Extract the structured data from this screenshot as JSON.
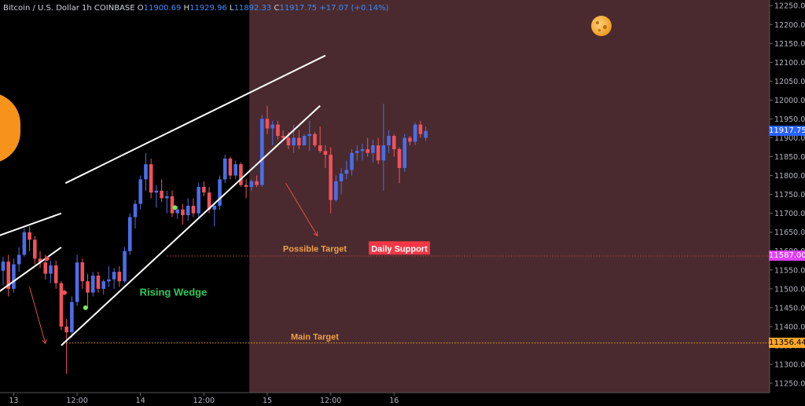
{
  "header": {
    "symbol": "Bitcoin / U.S. Dollar",
    "interval": "1h",
    "exchange": "COINBASE",
    "open_label": "O",
    "open": "11900.69",
    "high_label": "H",
    "high": "11929.96",
    "low_label": "L",
    "low": "11892.33",
    "close_label": "C",
    "close": "11917.75",
    "change": "+17.07 (+0.14%)"
  },
  "price_tags": {
    "last": "11917.75",
    "support": "11587.00",
    "main": "11356.44"
  },
  "colors": {
    "up": "#4a6ee8",
    "down": "#f0525a",
    "shade": "#4a2a2e",
    "last_tag": "#2962ff",
    "support_tag": "#e040fb",
    "main_tag": "#ffa726",
    "label": "#f0a04b",
    "wedge_label": "#2ec95a"
  },
  "chart_data": {
    "type": "candlestick",
    "y_axis": {
      "min": 11225,
      "max": 12265,
      "ticks": [
        "11250.00",
        "11300.00",
        "11350.00",
        "11400.00",
        "11450.00",
        "11500.00",
        "11550.00",
        "11600.00",
        "11650.00",
        "11700.00",
        "11750.00",
        "11800.00",
        "11850.00",
        "11900.00",
        "11950.00",
        "12000.00",
        "12050.00",
        "12100.00",
        "12150.00",
        "12200.00",
        "12250.00"
      ]
    },
    "x_axis": {
      "ticks": [
        {
          "label": "13",
          "index": 2
        },
        {
          "label": "12:00",
          "index": 14
        },
        {
          "label": "14",
          "index": 26
        },
        {
          "label": "12:00",
          "index": 38
        },
        {
          "label": "15",
          "index": 50
        },
        {
          "label": "12:00",
          "index": 62
        },
        {
          "label": "16",
          "index": 74
        }
      ]
    },
    "candles": [
      {
        "o": 11548,
        "h": 11585,
        "l": 11510,
        "c": 11572
      },
      {
        "o": 11572,
        "h": 11590,
        "l": 11480,
        "c": 11500
      },
      {
        "o": 11500,
        "h": 11580,
        "l": 11490,
        "c": 11565
      },
      {
        "o": 11565,
        "h": 11610,
        "l": 11545,
        "c": 11590
      },
      {
        "o": 11590,
        "h": 11660,
        "l": 11585,
        "c": 11650
      },
      {
        "o": 11650,
        "h": 11665,
        "l": 11600,
        "c": 11630
      },
      {
        "o": 11630,
        "h": 11640,
        "l": 11565,
        "c": 11580
      },
      {
        "o": 11580,
        "h": 11600,
        "l": 11555,
        "c": 11570
      },
      {
        "o": 11570,
        "h": 11590,
        "l": 11525,
        "c": 11540
      },
      {
        "o": 11540,
        "h": 11575,
        "l": 11515,
        "c": 11562
      },
      {
        "o": 11562,
        "h": 11575,
        "l": 11500,
        "c": 11515
      },
      {
        "o": 11515,
        "h": 11520,
        "l": 11390,
        "c": 11400
      },
      {
        "o": 11400,
        "h": 11420,
        "l": 11275,
        "c": 11385
      },
      {
        "o": 11385,
        "h": 11480,
        "l": 11370,
        "c": 11465
      },
      {
        "o": 11465,
        "h": 11590,
        "l": 11455,
        "c": 11570
      },
      {
        "o": 11570,
        "h": 11580,
        "l": 11500,
        "c": 11520
      },
      {
        "o": 11520,
        "h": 11540,
        "l": 11450,
        "c": 11490
      },
      {
        "o": 11490,
        "h": 11545,
        "l": 11480,
        "c": 11535
      },
      {
        "o": 11535,
        "h": 11545,
        "l": 11490,
        "c": 11500
      },
      {
        "o": 11500,
        "h": 11525,
        "l": 11485,
        "c": 11520
      },
      {
        "o": 11520,
        "h": 11560,
        "l": 11505,
        "c": 11525
      },
      {
        "o": 11525,
        "h": 11555,
        "l": 11500,
        "c": 11545
      },
      {
        "o": 11545,
        "h": 11560,
        "l": 11505,
        "c": 11520
      },
      {
        "o": 11520,
        "h": 11610,
        "l": 11515,
        "c": 11600
      },
      {
        "o": 11600,
        "h": 11700,
        "l": 11590,
        "c": 11690
      },
      {
        "o": 11690,
        "h": 11735,
        "l": 11660,
        "c": 11725
      },
      {
        "o": 11725,
        "h": 11800,
        "l": 11710,
        "c": 11790
      },
      {
        "o": 11790,
        "h": 11860,
        "l": 11760,
        "c": 11830
      },
      {
        "o": 11830,
        "h": 11845,
        "l": 11740,
        "c": 11755
      },
      {
        "o": 11755,
        "h": 11775,
        "l": 11715,
        "c": 11760
      },
      {
        "o": 11760,
        "h": 11790,
        "l": 11730,
        "c": 11740
      },
      {
        "o": 11740,
        "h": 11760,
        "l": 11700,
        "c": 11745
      },
      {
        "o": 11745,
        "h": 11760,
        "l": 11690,
        "c": 11700
      },
      {
        "o": 11700,
        "h": 11720,
        "l": 11685,
        "c": 11710
      },
      {
        "o": 11710,
        "h": 11725,
        "l": 11670,
        "c": 11695
      },
      {
        "o": 11695,
        "h": 11740,
        "l": 11680,
        "c": 11720
      },
      {
        "o": 11720,
        "h": 11740,
        "l": 11690,
        "c": 11700
      },
      {
        "o": 11700,
        "h": 11780,
        "l": 11690,
        "c": 11770
      },
      {
        "o": 11770,
        "h": 11785,
        "l": 11745,
        "c": 11755
      },
      {
        "o": 11755,
        "h": 11770,
        "l": 11700,
        "c": 11710
      },
      {
        "o": 11710,
        "h": 11725,
        "l": 11665,
        "c": 11720
      },
      {
        "o": 11720,
        "h": 11800,
        "l": 11710,
        "c": 11790
      },
      {
        "o": 11790,
        "h": 11855,
        "l": 11780,
        "c": 11845
      },
      {
        "o": 11845,
        "h": 11850,
        "l": 11790,
        "c": 11800
      },
      {
        "o": 11800,
        "h": 11840,
        "l": 11790,
        "c": 11830
      },
      {
        "o": 11830,
        "h": 11835,
        "l": 11770,
        "c": 11775
      },
      {
        "o": 11775,
        "h": 11790,
        "l": 11740,
        "c": 11770
      },
      {
        "o": 11770,
        "h": 11790,
        "l": 11760,
        "c": 11785
      },
      {
        "o": 11785,
        "h": 11800,
        "l": 11770,
        "c": 11775
      },
      {
        "o": 11775,
        "h": 11960,
        "l": 11770,
        "c": 11950
      },
      {
        "o": 11950,
        "h": 11985,
        "l": 11910,
        "c": 11925
      },
      {
        "o": 11925,
        "h": 11945,
        "l": 11880,
        "c": 11935
      },
      {
        "o": 11935,
        "h": 11945,
        "l": 11895,
        "c": 11905
      },
      {
        "o": 11905,
        "h": 11920,
        "l": 11895,
        "c": 11900
      },
      {
        "o": 11900,
        "h": 11915,
        "l": 11870,
        "c": 11880
      },
      {
        "o": 11880,
        "h": 11935,
        "l": 11860,
        "c": 11900
      },
      {
        "o": 11900,
        "h": 11920,
        "l": 11870,
        "c": 11880
      },
      {
        "o": 11880,
        "h": 11910,
        "l": 11880,
        "c": 11905
      },
      {
        "o": 11905,
        "h": 11945,
        "l": 11865,
        "c": 11910
      },
      {
        "o": 11910,
        "h": 11915,
        "l": 11875,
        "c": 11880
      },
      {
        "o": 11880,
        "h": 11930,
        "l": 11860,
        "c": 11865
      },
      {
        "o": 11865,
        "h": 11880,
        "l": 11820,
        "c": 11855
      },
      {
        "o": 11855,
        "h": 11875,
        "l": 11700,
        "c": 11735
      },
      {
        "o": 11735,
        "h": 11800,
        "l": 11730,
        "c": 11785
      },
      {
        "o": 11785,
        "h": 11820,
        "l": 11750,
        "c": 11805
      },
      {
        "o": 11805,
        "h": 11840,
        "l": 11790,
        "c": 11815
      },
      {
        "o": 11815,
        "h": 11870,
        "l": 11800,
        "c": 11860
      },
      {
        "o": 11860,
        "h": 11880,
        "l": 11840,
        "c": 11865
      },
      {
        "o": 11865,
        "h": 11885,
        "l": 11840,
        "c": 11870
      },
      {
        "o": 11870,
        "h": 11900,
        "l": 11850,
        "c": 11860
      },
      {
        "o": 11860,
        "h": 11895,
        "l": 11835,
        "c": 11880
      },
      {
        "o": 11880,
        "h": 11900,
        "l": 11830,
        "c": 11840
      },
      {
        "o": 11840,
        "h": 11990,
        "l": 11760,
        "c": 11880
      },
      {
        "o": 11880,
        "h": 11920,
        "l": 11860,
        "c": 11905
      },
      {
        "o": 11905,
        "h": 11910,
        "l": 11850,
        "c": 11870
      },
      {
        "o": 11870,
        "h": 11875,
        "l": 11780,
        "c": 11820
      },
      {
        "o": 11820,
        "h": 11910,
        "l": 11810,
        "c": 11900
      },
      {
        "o": 11900,
        "h": 11905,
        "l": 11880,
        "c": 11890
      },
      {
        "o": 11890,
        "h": 11940,
        "l": 11880,
        "c": 11935
      },
      {
        "o": 11935,
        "h": 11945,
        "l": 11900,
        "c": 11910
      },
      {
        "o": 11900,
        "h": 11930,
        "l": 11892,
        "c": 11918
      }
    ],
    "lines": [
      {
        "name": "lower-channel-upper",
        "from": {
          "i": -1,
          "p": 11640
        },
        "to": {
          "i": 11,
          "p": 11700
        }
      },
      {
        "name": "lower-channel-lower",
        "from": {
          "i": -1,
          "p": 11490
        },
        "to": {
          "i": 11,
          "p": 11610
        }
      },
      {
        "name": "wedge-upper",
        "from": {
          "i": 11.8,
          "p": 11780
        },
        "to": {
          "i": 61,
          "p": 12118
        }
      },
      {
        "name": "wedge-lower",
        "from": {
          "i": 11,
          "p": 11350
        },
        "to": {
          "i": 60,
          "p": 11985
        }
      },
      {
        "name": "daily-support",
        "from": {
          "i": 31,
          "p": 11587
        },
        "to": {
          "i": 121,
          "p": 11587
        }
      },
      {
        "name": "main-target",
        "from": {
          "i": 12,
          "p": 11356.44
        },
        "to": {
          "i": 121,
          "p": 11356.44
        }
      }
    ],
    "arrows": [
      {
        "from": {
          "i": 5,
          "p": 11505
        },
        "to": {
          "i": 8,
          "p": 11355
        }
      },
      {
        "from": {
          "i": 53.5,
          "p": 11780
        },
        "to": {
          "i": 59.5,
          "p": 11640
        }
      }
    ],
    "dots": [
      {
        "i": 8.3,
        "p": 11580,
        "kind": "down"
      },
      {
        "i": 11.6,
        "p": 11490,
        "kind": "down"
      },
      {
        "i": 15.6,
        "p": 11450,
        "kind": "up"
      },
      {
        "i": 32.5,
        "p": 11715,
        "kind": "up"
      }
    ],
    "annotations": [
      {
        "text": "Rising Wedge",
        "i": 34,
        "p": 11490,
        "role": "wedge"
      },
      {
        "text": "Possible Target",
        "i": 59,
        "p": 11600,
        "role": "target"
      },
      {
        "text": "Daily Support",
        "i": 75,
        "p": 11600,
        "role": "support"
      },
      {
        "text": "Main Target",
        "i": 59,
        "p": 11367,
        "role": "target"
      }
    ],
    "shaded_region_start_index": 46.6
  }
}
